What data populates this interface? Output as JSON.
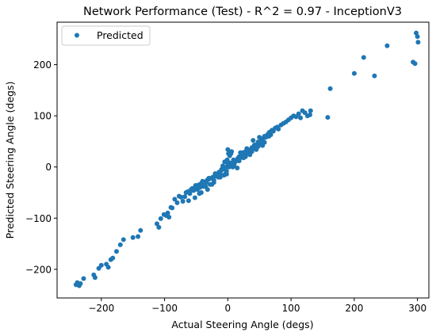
{
  "chart_data": {
    "type": "scatter",
    "title": "Network Performance (Test) - R^2 = 0.97 - InceptionV3",
    "xlabel": "Actual Steering Angle (degs)",
    "ylabel": "Predicted Steering Angle (degs)",
    "xlim": [
      -270,
      318
    ],
    "ylim": [
      -256,
      283
    ],
    "xticks": [
      -200,
      -100,
      0,
      100,
      200,
      300
    ],
    "yticks": [
      -200,
      -100,
      0,
      100,
      200
    ],
    "xtick_labels": [
      "−200",
      "−100",
      "0",
      "100",
      "200",
      "300"
    ],
    "ytick_labels": [
      "−200",
      "−100",
      "0",
      "100",
      "200"
    ],
    "grid": false,
    "legend_position": "top-left",
    "series": [
      {
        "name": "Predicted",
        "color": "#1f77b4",
        "x": [
          -240,
          -238,
          -235,
          -233,
          -228,
          -212,
          -210,
          -204,
          -200,
          -192,
          -189,
          -185,
          -182,
          -176,
          -170,
          -165,
          -150,
          -142,
          -138,
          -112,
          -109,
          -106,
          -101,
          -97,
          -95,
          -93,
          -90,
          -88,
          -84,
          -80,
          -77,
          -74,
          -71,
          -68,
          -66,
          -63,
          -60,
          -58,
          -56,
          -54,
          -51,
          -48,
          -46,
          -44,
          -42,
          -40,
          -38,
          -36,
          -34,
          -32,
          -30,
          -28,
          -26,
          -24,
          -22,
          -20,
          -18,
          -16,
          -14,
          -12,
          -10,
          -8,
          -6,
          -4,
          -2,
          0,
          2,
          4,
          6,
          8,
          10,
          12,
          14,
          16,
          18,
          20,
          22,
          24,
          26,
          28,
          30,
          32,
          34,
          36,
          38,
          40,
          42,
          44,
          46,
          48,
          50,
          52,
          54,
          56,
          58,
          60,
          62,
          64,
          66,
          68,
          70,
          72,
          75,
          78,
          80,
          84,
          88,
          92,
          96,
          100,
          104,
          108,
          112,
          115,
          118,
          122,
          126,
          130,
          131,
          158,
          162,
          200,
          215,
          232,
          252,
          293,
          296,
          298,
          300,
          301,
          -60,
          -50,
          -40,
          -30,
          -20,
          -10,
          0,
          10,
          20,
          30,
          40,
          50,
          -62,
          -52,
          -42,
          -32,
          -22,
          -12,
          -2,
          8,
          18,
          28,
          38,
          48,
          58,
          -15,
          -5,
          5,
          15,
          25,
          35,
          45,
          55,
          65,
          -35,
          -25,
          -45,
          0,
          3,
          -3,
          6,
          -6,
          9,
          1,
          -1
        ],
        "y": [
          -230,
          -226,
          -232,
          -228,
          -218,
          -211,
          -216,
          -198,
          -192,
          -190,
          -196,
          -181,
          -178,
          -165,
          -152,
          -142,
          -138,
          -136,
          -124,
          -111,
          -118,
          -101,
          -93,
          -95,
          -90,
          -98,
          -79,
          -80,
          -63,
          -70,
          -57,
          -59,
          -67,
          -58,
          -50,
          -48,
          -52,
          -44,
          -42,
          -46,
          -36,
          -44,
          -35,
          -40,
          -32,
          -28,
          -38,
          -29,
          -30,
          -25,
          -24,
          -34,
          -22,
          -20,
          -26,
          -13,
          -15,
          -17,
          -10,
          -12,
          -6,
          2,
          -4,
          -1,
          -8,
          4,
          0,
          8,
          3,
          6,
          12,
          10,
          14,
          17,
          20,
          18,
          22,
          28,
          24,
          30,
          26,
          34,
          30,
          32,
          38,
          36,
          43,
          40,
          44,
          49,
          46,
          50,
          52,
          56,
          60,
          58,
          62,
          65,
          68,
          63,
          72,
          70,
          76,
          78,
          74,
          82,
          85,
          88,
          92,
          96,
          100,
          98,
          104,
          96,
          110,
          106,
          100,
          102,
          110,
          97,
          153,
          183,
          214,
          178,
          237,
          205,
          202,
          262,
          255,
          244,
          -48,
          -42,
          -30,
          -22,
          -18,
          -5,
          10,
          4,
          28,
          36,
          52,
          58,
          -66,
          -60,
          -50,
          -44,
          -30,
          -20,
          -14,
          0,
          12,
          20,
          30,
          40,
          48,
          -20,
          10,
          26,
          -2,
          18,
          24,
          34,
          42,
          60,
          -38,
          -34,
          -52,
          34,
          22,
          -12,
          30,
          -16,
          14,
          26,
          14
        ]
      }
    ]
  }
}
